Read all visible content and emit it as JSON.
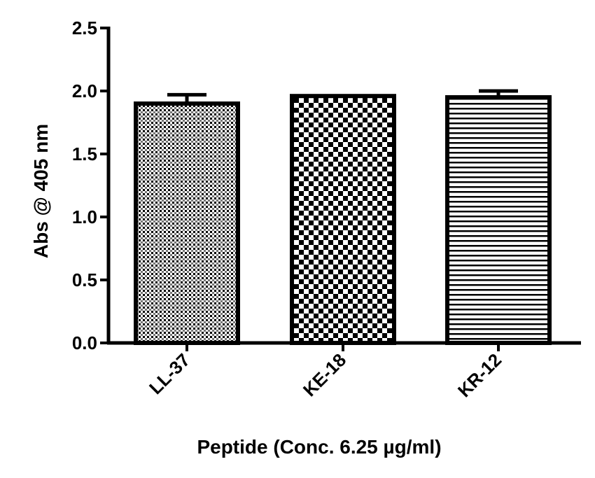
{
  "chart_data": {
    "type": "bar",
    "title": "",
    "xlabel": "Peptide (Conc. 6.25 µg/ml)",
    "ylabel": "Abs @ 405 nm",
    "ylim": [
      0,
      2.5
    ],
    "yticks": [
      "0.0",
      "0.5",
      "1.0",
      "1.5",
      "2.0",
      "2.5"
    ],
    "categories": [
      "LL-37",
      "KE-18",
      "KR-12"
    ],
    "values": [
      1.9,
      1.96,
      1.95
    ],
    "errors": [
      0.07,
      0.0,
      0.05
    ],
    "patterns": [
      "fine-grid",
      "checker",
      "horizontal-lines"
    ],
    "grid": false,
    "legend": "none",
    "colors": {
      "bar_fill": "#ffffff",
      "ink": "#000000"
    }
  }
}
